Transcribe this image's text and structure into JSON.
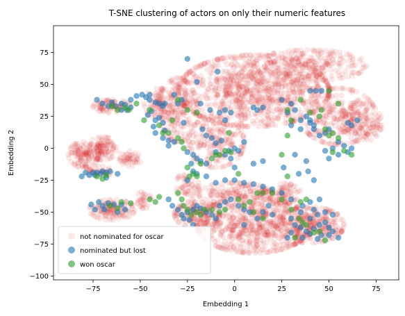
{
  "chart_data": {
    "type": "scatter",
    "title": "T-SNE clustering of actors on only their numeric features",
    "xlabel": "Embedding 1",
    "ylabel": "Embedding 2",
    "xlim": [
      -96,
      87
    ],
    "ylim": [
      -103,
      96
    ],
    "xticks": [
      -75,
      -50,
      -25,
      0,
      25,
      50,
      75
    ],
    "yticks": [
      -100,
      -75,
      -50,
      -25,
      0,
      25,
      50,
      75
    ],
    "grid": false,
    "legend_position": "lower-left",
    "series": [
      {
        "name": "not nominated for oscar",
        "color": "#d62728",
        "alpha": 0.1,
        "clusters": [
          {
            "cx": 10,
            "cy": 45,
            "rx": 40,
            "ry": 28,
            "n": 900
          },
          {
            "cx": 40,
            "cy": 65,
            "rx": 30,
            "ry": 12,
            "n": 250
          },
          {
            "cx": 55,
            "cy": 25,
            "rx": 20,
            "ry": 22,
            "n": 260
          },
          {
            "cx": 68,
            "cy": 20,
            "rx": 10,
            "ry": 15,
            "n": 100
          },
          {
            "cx": -10,
            "cy": 5,
            "rx": 15,
            "ry": 20,
            "n": 200
          },
          {
            "cx": -30,
            "cy": 30,
            "rx": 10,
            "ry": 25,
            "n": 180
          },
          {
            "cx": -40,
            "cy": 35,
            "rx": 8,
            "ry": 12,
            "n": 90
          },
          {
            "cx": -65,
            "cy": 33,
            "rx": 10,
            "ry": 5,
            "n": 80
          },
          {
            "cx": -80,
            "cy": -5,
            "rx": 8,
            "ry": 10,
            "n": 120
          },
          {
            "cx": -70,
            "cy": 0,
            "rx": 8,
            "ry": 9,
            "n": 100
          },
          {
            "cx": -55,
            "cy": -8,
            "rx": 6,
            "ry": 6,
            "n": 45
          },
          {
            "cx": -72,
            "cy": -18,
            "rx": 7,
            "ry": 4,
            "n": 40
          },
          {
            "cx": -65,
            "cy": -48,
            "rx": 12,
            "ry": 8,
            "n": 120
          },
          {
            "cx": -48,
            "cy": -40,
            "rx": 4,
            "ry": 7,
            "n": 30
          },
          {
            "cx": -20,
            "cy": -52,
            "rx": 12,
            "ry": 10,
            "n": 150
          },
          {
            "cx": 10,
            "cy": -60,
            "rx": 30,
            "ry": 22,
            "n": 600
          },
          {
            "cx": 40,
            "cy": -60,
            "rx": 18,
            "ry": 14,
            "n": 280
          },
          {
            "cx": 0,
            "cy": -35,
            "rx": 20,
            "ry": 8,
            "n": 150
          },
          {
            "cx": -25,
            "cy": -30,
            "rx": 6,
            "ry": 12,
            "n": 50
          },
          {
            "cx": 25,
            "cy": -35,
            "rx": 10,
            "ry": 8,
            "n": 80
          }
        ]
      },
      {
        "name": "nominated but lost",
        "color": "#1f77b4",
        "alpha": 0.6,
        "points": [
          [
            -75,
            -19
          ],
          [
            -73,
            -19
          ],
          [
            -70,
            -18
          ],
          [
            -68,
            -19
          ],
          [
            -66,
            -18
          ],
          [
            -79,
            -19
          ],
          [
            -81,
            -22
          ],
          [
            -77,
            -21
          ],
          [
            -74,
            -21
          ],
          [
            -71,
            -20
          ],
          [
            -68,
            -23
          ],
          [
            -62,
            -20
          ],
          [
            -76,
            -44
          ],
          [
            -72,
            -42
          ],
          [
            -70,
            -45
          ],
          [
            -67,
            -43
          ],
          [
            -64,
            -44
          ],
          [
            -60,
            -44
          ],
          [
            -58,
            -48
          ],
          [
            -74,
            -48
          ],
          [
            -69,
            -48
          ],
          [
            -62,
            -50
          ],
          [
            -73,
            38
          ],
          [
            -70,
            35
          ],
          [
            -67,
            33
          ],
          [
            -65,
            36
          ],
          [
            -63,
            33
          ],
          [
            -60,
            35
          ],
          [
            -58,
            34
          ],
          [
            -55,
            38
          ],
          [
            -57,
            30
          ],
          [
            -60,
            30
          ],
          [
            -55,
            32
          ],
          [
            -52,
            41
          ],
          [
            -49,
            42
          ],
          [
            -47,
            40
          ],
          [
            -45,
            38
          ],
          [
            -42,
            36
          ],
          [
            -40,
            35
          ],
          [
            -38,
            33
          ],
          [
            -45,
            42
          ],
          [
            -44,
            29
          ],
          [
            -42,
            22
          ],
          [
            -38,
            20
          ],
          [
            -40,
            24
          ],
          [
            -46,
            26
          ],
          [
            -43,
            17
          ],
          [
            -37,
            14
          ],
          [
            -42,
            12
          ],
          [
            -35,
            6
          ],
          [
            -38,
            8
          ],
          [
            -32,
            5
          ],
          [
            -35,
            2
          ],
          [
            -37,
            35
          ],
          [
            -30,
            35
          ],
          [
            -28,
            38
          ],
          [
            -32,
            42
          ],
          [
            -25,
            70
          ],
          [
            -20,
            52
          ],
          [
            -9,
            60
          ],
          [
            -18,
            35
          ],
          [
            -13,
            30
          ],
          [
            -8,
            28
          ],
          [
            -5,
            22
          ],
          [
            -17,
            15
          ],
          [
            -15,
            10
          ],
          [
            -12,
            8
          ],
          [
            -10,
            4
          ],
          [
            -7,
            6
          ],
          [
            -27,
            20
          ],
          [
            -25,
            -3
          ],
          [
            -22,
            -5
          ],
          [
            -20,
            -8
          ],
          [
            -23,
            -12
          ],
          [
            -18,
            -10
          ],
          [
            -10,
            -3
          ],
          [
            -5,
            -5
          ],
          [
            -2,
            -8
          ],
          [
            -20,
            -20
          ],
          [
            -22,
            -18
          ],
          [
            -25,
            -25
          ],
          [
            -15,
            -22
          ],
          [
            -10,
            -27
          ],
          [
            -5,
            -25
          ],
          [
            0,
            -25
          ],
          [
            5,
            -27
          ],
          [
            10,
            -28
          ],
          [
            15,
            -30
          ],
          [
            20,
            -32
          ],
          [
            25,
            -35
          ],
          [
            30,
            -40
          ],
          [
            -35,
            -40
          ],
          [
            -33,
            -45
          ],
          [
            -30,
            -48
          ],
          [
            -28,
            -52
          ],
          [
            -27,
            -55
          ],
          [
            -25,
            -50
          ],
          [
            -22,
            -48
          ],
          [
            -20,
            -45
          ],
          [
            -18,
            -47
          ],
          [
            -15,
            -50
          ],
          [
            -12,
            -52
          ],
          [
            -10,
            -55
          ],
          [
            -8,
            -45
          ],
          [
            -5,
            -42
          ],
          [
            -2,
            -40
          ],
          [
            2,
            -45
          ],
          [
            5,
            -48
          ],
          [
            8,
            -50
          ],
          [
            12,
            -55
          ],
          [
            15,
            -50
          ],
          [
            18,
            -45
          ],
          [
            20,
            -52
          ],
          [
            5,
            -60
          ],
          [
            -22,
            -60
          ],
          [
            -24,
            -56
          ],
          [
            30,
            -55
          ],
          [
            32,
            -60
          ],
          [
            35,
            -62
          ],
          [
            38,
            -65
          ],
          [
            40,
            -67
          ],
          [
            42,
            -63
          ],
          [
            45,
            -60
          ],
          [
            48,
            -58
          ],
          [
            50,
            -62
          ],
          [
            52,
            -65
          ],
          [
            55,
            -70
          ],
          [
            40,
            -55
          ],
          [
            44,
            -52
          ],
          [
            35,
            -50
          ],
          [
            36,
            -70
          ],
          [
            44,
            -71
          ],
          [
            46,
            -68
          ],
          [
            50,
            -68
          ],
          [
            30,
            -66
          ],
          [
            28,
            -70
          ],
          [
            48,
            -50
          ],
          [
            42,
            -48
          ],
          [
            36,
            -45
          ],
          [
            -15,
            -12
          ],
          [
            0,
            -15
          ],
          [
            10,
            -12
          ],
          [
            15,
            -10
          ],
          [
            5,
            5
          ],
          [
            0,
            0
          ],
          [
            -3,
            -2
          ],
          [
            2,
            -2
          ],
          [
            25,
            38
          ],
          [
            30,
            35
          ],
          [
            32,
            30
          ],
          [
            28,
            28
          ],
          [
            35,
            22
          ],
          [
            38,
            25
          ],
          [
            40,
            20
          ],
          [
            42,
            15
          ],
          [
            45,
            10
          ],
          [
            48,
            12
          ],
          [
            50,
            15
          ],
          [
            42,
            18
          ],
          [
            35,
            15
          ],
          [
            30,
            18
          ],
          [
            40,
            45
          ],
          [
            43,
            45
          ],
          [
            46,
            45
          ],
          [
            40,
            22
          ],
          [
            60,
            20
          ],
          [
            62,
            18
          ],
          [
            65,
            22
          ],
          [
            55,
            5
          ],
          [
            58,
            2
          ],
          [
            52,
            0
          ],
          [
            48,
            -2
          ],
          [
            55,
            -5
          ],
          [
            60,
            -3
          ],
          [
            62,
            0
          ],
          [
            50,
            -8
          ],
          [
            10,
            32
          ],
          [
            12,
            30
          ],
          [
            15,
            32
          ],
          [
            -5,
            30
          ],
          [
            -2,
            28
          ],
          [
            26,
            -15
          ],
          [
            38,
            -10
          ],
          [
            32,
            -5
          ],
          [
            34,
            -20
          ],
          [
            39,
            -18
          ],
          [
            42,
            -25
          ],
          [
            45,
            -40
          ],
          [
            52,
            -52
          ],
          [
            40,
            -42
          ]
        ]
      },
      {
        "name": "won oscar",
        "color": "#2ca02c",
        "alpha": 0.6,
        "points": [
          [
            -73,
            -22
          ],
          [
            -70,
            -24
          ],
          [
            -68,
            -21
          ],
          [
            -66,
            -45
          ],
          [
            -62,
            -47
          ],
          [
            -60,
            -42
          ],
          [
            -55,
            -43
          ],
          [
            -65,
            33
          ],
          [
            -62,
            30
          ],
          [
            -58,
            32
          ],
          [
            -56,
            30
          ],
          [
            -52,
            35
          ],
          [
            -45,
            30
          ],
          [
            -48,
            22
          ],
          [
            -40,
            18
          ],
          [
            -35,
            12
          ],
          [
            -38,
            12
          ],
          [
            -33,
            22
          ],
          [
            -30,
            8
          ],
          [
            -28,
            5
          ],
          [
            -27,
            0
          ],
          [
            -25,
            -15
          ],
          [
            -22,
            -20
          ],
          [
            -24,
            -22
          ],
          [
            -20,
            -22
          ],
          [
            -18,
            -12
          ],
          [
            -10,
            -5
          ],
          [
            -5,
            -2
          ],
          [
            -30,
            -35
          ],
          [
            -28,
            -40
          ],
          [
            -27,
            -45
          ],
          [
            -25,
            -48
          ],
          [
            -23,
            -52
          ],
          [
            -20,
            -50
          ],
          [
            -18,
            -52
          ],
          [
            -16,
            -48
          ],
          [
            -12,
            -48
          ],
          [
            -8,
            -50
          ],
          [
            -5,
            -48
          ],
          [
            2,
            -40
          ],
          [
            8,
            -42
          ],
          [
            12,
            -35
          ],
          [
            15,
            -35
          ],
          [
            25,
            -40
          ],
          [
            30,
            -48
          ],
          [
            34,
            -55
          ],
          [
            36,
            -58
          ],
          [
            38,
            -60
          ],
          [
            42,
            -66
          ],
          [
            45,
            -65
          ],
          [
            48,
            -72
          ],
          [
            32,
            -70
          ],
          [
            28,
            30
          ],
          [
            30,
            22
          ],
          [
            35,
            38
          ],
          [
            40,
            28
          ],
          [
            45,
            25
          ],
          [
            48,
            15
          ],
          [
            50,
            10
          ],
          [
            52,
            12
          ],
          [
            55,
            8
          ],
          [
            58,
            -2
          ],
          [
            62,
            -5
          ],
          [
            52,
            -3
          ],
          [
            50,
            45
          ],
          [
            55,
            35
          ],
          [
            46,
            30
          ],
          [
            -30,
            38
          ],
          [
            -25,
            30
          ],
          [
            -20,
            28
          ],
          [
            -2,
            -3
          ],
          [
            -8,
            -5
          ],
          [
            5,
            -45
          ],
          [
            10,
            -50
          ],
          [
            15,
            -55
          ],
          [
            20,
            -35
          ],
          [
            28,
            -22
          ],
          [
            -12,
            -8
          ],
          [
            -3,
            12
          ],
          [
            28,
            10
          ],
          [
            25,
            -5
          ],
          [
            -42,
            -42
          ],
          [
            -40,
            -38
          ],
          [
            -45,
            -40
          ],
          [
            2,
            -20
          ],
          [
            38,
            -40
          ],
          [
            35,
            -42
          ]
        ]
      }
    ]
  }
}
